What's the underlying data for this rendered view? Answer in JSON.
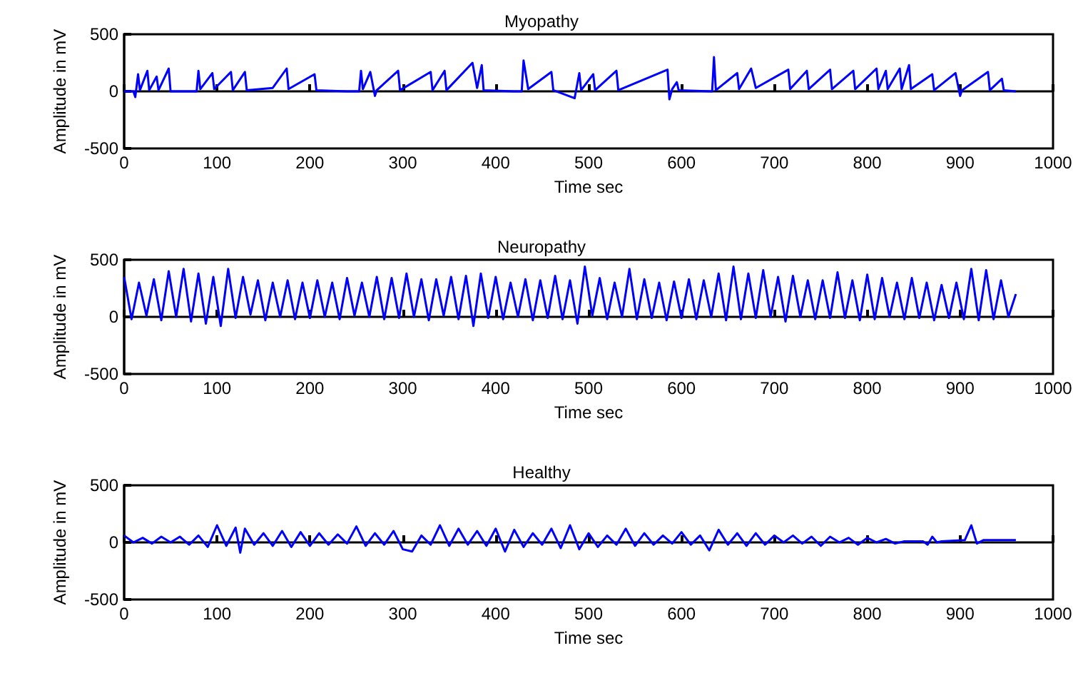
{
  "chart_data": [
    {
      "type": "line",
      "title": "Myopathy",
      "xlabel": "Time sec",
      "ylabel": "Amplitude in mV",
      "xlim": [
        0,
        1000
      ],
      "xticks": [
        0,
        100,
        200,
        300,
        400,
        500,
        600,
        700,
        800,
        900,
        1000
      ],
      "ylim": [
        -500,
        500
      ],
      "yticks": [
        -500,
        0,
        500
      ],
      "x": [
        0,
        10,
        12,
        15,
        17,
        25,
        27,
        35,
        37,
        48,
        50,
        78,
        80,
        82,
        95,
        97,
        115,
        117,
        130,
        132,
        160,
        175,
        177,
        205,
        207,
        240,
        253,
        255,
        257,
        265,
        270,
        272,
        295,
        297,
        330,
        332,
        345,
        347,
        375,
        380,
        385,
        387,
        420,
        428,
        430,
        435,
        460,
        462,
        485,
        490,
        492,
        505,
        507,
        530,
        532,
        585,
        587,
        590,
        595,
        597,
        633,
        635,
        637,
        660,
        662,
        675,
        680,
        715,
        717,
        735,
        737,
        760,
        762,
        785,
        787,
        810,
        812,
        820,
        822,
        835,
        837,
        845,
        847,
        870,
        872,
        895,
        900,
        902,
        930,
        932,
        945,
        947,
        960
      ],
      "series": [
        {
          "color": "#0000ff",
          "values": [
            0,
            0,
            -50,
            150,
            10,
            180,
            10,
            130,
            10,
            200,
            0,
            0,
            180,
            20,
            160,
            20,
            170,
            10,
            170,
            10,
            30,
            200,
            20,
            150,
            10,
            0,
            0,
            180,
            20,
            170,
            -40,
            10,
            180,
            10,
            170,
            10,
            180,
            10,
            250,
            30,
            230,
            10,
            0,
            0,
            270,
            20,
            170,
            10,
            -60,
            160,
            10,
            150,
            10,
            180,
            10,
            190,
            -70,
            20,
            80,
            10,
            0,
            300,
            10,
            160,
            20,
            200,
            30,
            190,
            20,
            180,
            20,
            190,
            20,
            180,
            20,
            200,
            20,
            180,
            20,
            200,
            20,
            230,
            20,
            150,
            10,
            160,
            -40,
            10,
            170,
            10,
            110,
            10,
            0
          ]
        }
      ]
    },
    {
      "type": "line",
      "title": "Neuropathy",
      "xlabel": "Time sec",
      "ylabel": "Amplitude in mV",
      "xlim": [
        0,
        1000
      ],
      "xticks": [
        0,
        100,
        200,
        300,
        400,
        500,
        600,
        700,
        800,
        900,
        1000
      ],
      "ylim": [
        -500,
        500
      ],
      "yticks": [
        -500,
        0,
        500
      ],
      "x": [
        0,
        8,
        16,
        24,
        32,
        40,
        48,
        56,
        64,
        72,
        80,
        88,
        96,
        104,
        112,
        120,
        128,
        136,
        144,
        152,
        160,
        168,
        176,
        184,
        192,
        200,
        208,
        216,
        224,
        232,
        240,
        248,
        256,
        264,
        272,
        280,
        288,
        296,
        304,
        312,
        320,
        328,
        336,
        344,
        352,
        360,
        368,
        376,
        384,
        392,
        400,
        408,
        416,
        424,
        432,
        440,
        448,
        456,
        464,
        472,
        480,
        488,
        496,
        504,
        512,
        520,
        528,
        536,
        544,
        552,
        560,
        568,
        576,
        584,
        592,
        600,
        608,
        616,
        624,
        632,
        640,
        648,
        656,
        664,
        672,
        680,
        688,
        696,
        704,
        712,
        720,
        728,
        736,
        744,
        752,
        760,
        768,
        776,
        784,
        792,
        800,
        808,
        816,
        824,
        832,
        840,
        848,
        856,
        864,
        872,
        880,
        888,
        896,
        904,
        912,
        920,
        928,
        936,
        944,
        952,
        960
      ],
      "series": [
        {
          "color": "#0000ff",
          "values": [
            350,
            -20,
            300,
            10,
            330,
            -30,
            400,
            0,
            420,
            -40,
            380,
            -60,
            350,
            -80,
            420,
            -10,
            350,
            20,
            320,
            -30,
            300,
            0,
            320,
            -20,
            300,
            -10,
            320,
            0,
            300,
            -20,
            340,
            10,
            300,
            0,
            350,
            -20,
            340,
            -10,
            380,
            0,
            330,
            -30,
            330,
            10,
            350,
            -20,
            360,
            -80,
            380,
            -10,
            350,
            -20,
            300,
            0,
            330,
            -30,
            320,
            -10,
            360,
            -20,
            320,
            -60,
            440,
            10,
            340,
            -20,
            300,
            0,
            420,
            -20,
            330,
            -10,
            300,
            -30,
            310,
            -10,
            330,
            -20,
            320,
            0,
            380,
            -30,
            440,
            -20,
            380,
            -10,
            410,
            0,
            350,
            -40,
            360,
            0,
            320,
            -20,
            320,
            -10,
            390,
            -10,
            320,
            -30,
            370,
            -20,
            340,
            0,
            300,
            -20,
            340,
            -10,
            300,
            -30,
            280,
            -10,
            300,
            -20,
            420,
            -30,
            410,
            -20,
            320,
            0,
            200
          ]
        }
      ]
    },
    {
      "type": "line",
      "title": "Healthy",
      "xlabel": "Time sec",
      "ylabel": "Amplitude in mV",
      "xlim": [
        0,
        1000
      ],
      "xticks": [
        0,
        100,
        200,
        300,
        400,
        500,
        600,
        700,
        800,
        900,
        1000
      ],
      "ylim": [
        -500,
        500
      ],
      "yticks": [
        -500,
        0,
        500
      ],
      "x": [
        0,
        10,
        20,
        30,
        40,
        50,
        60,
        70,
        80,
        90,
        100,
        110,
        120,
        125,
        130,
        140,
        150,
        160,
        170,
        180,
        190,
        200,
        210,
        220,
        230,
        240,
        250,
        260,
        270,
        280,
        290,
        300,
        310,
        320,
        330,
        340,
        350,
        360,
        370,
        380,
        390,
        400,
        410,
        420,
        430,
        440,
        450,
        460,
        470,
        480,
        490,
        500,
        510,
        520,
        530,
        540,
        550,
        560,
        570,
        580,
        590,
        600,
        610,
        620,
        630,
        640,
        650,
        660,
        670,
        680,
        690,
        700,
        710,
        720,
        730,
        740,
        750,
        760,
        770,
        780,
        790,
        800,
        810,
        820,
        830,
        840,
        860,
        865,
        870,
        875,
        880,
        905,
        912,
        918,
        925,
        960
      ],
      "series": [
        {
          "color": "#0000ff",
          "values": [
            60,
            0,
            40,
            -10,
            50,
            0,
            50,
            -20,
            60,
            -40,
            150,
            -30,
            130,
            -90,
            120,
            -20,
            80,
            -30,
            100,
            -40,
            90,
            -30,
            80,
            -20,
            70,
            -10,
            140,
            -30,
            80,
            -20,
            100,
            -60,
            -80,
            60,
            -20,
            150,
            -30,
            120,
            -20,
            100,
            -30,
            120,
            -80,
            110,
            -40,
            80,
            -20,
            120,
            -50,
            150,
            -60,
            80,
            -40,
            60,
            -20,
            120,
            -30,
            80,
            -20,
            60,
            -10,
            90,
            -20,
            60,
            -70,
            110,
            -20,
            80,
            -30,
            80,
            -20,
            60,
            0,
            60,
            -10,
            50,
            -30,
            50,
            0,
            40,
            -20,
            40,
            0,
            30,
            -10,
            10,
            10,
            -20,
            50,
            0,
            10,
            20,
            150,
            -10,
            20,
            20
          ]
        }
      ]
    }
  ]
}
